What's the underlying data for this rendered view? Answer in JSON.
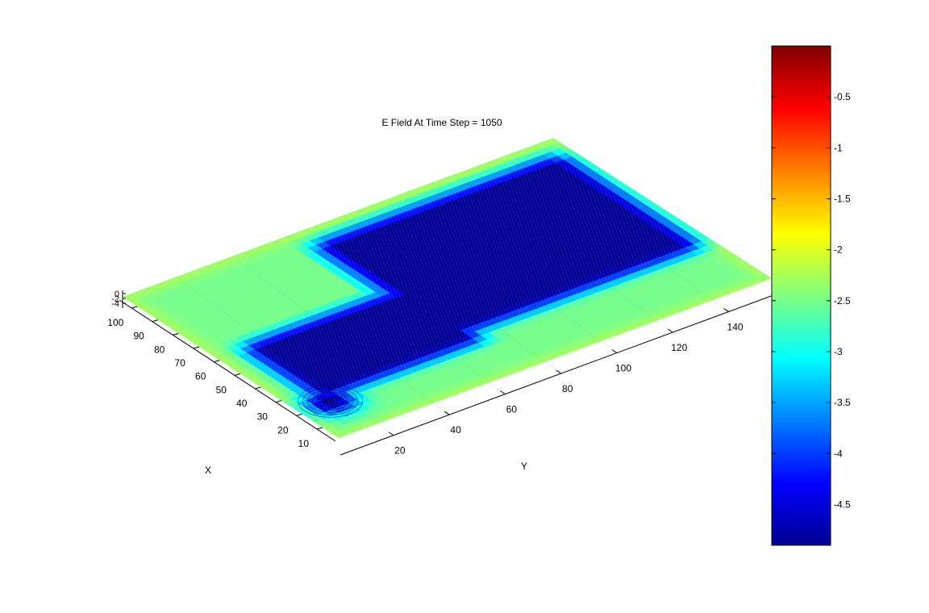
{
  "chart_data": {
    "type": "surface",
    "title": "E Field At Time Step = 1050",
    "xlabel": "X",
    "ylabel": "Y",
    "zlabel": "",
    "x_ticks": [
      10,
      20,
      30,
      40,
      50,
      60,
      70,
      80,
      90,
      100
    ],
    "y_ticks": [
      20,
      40,
      60,
      80,
      100,
      120,
      140
    ],
    "z_ticks": [
      "0",
      "-2",
      "-4"
    ],
    "xlim": [
      1,
      106
    ],
    "ylim": [
      1,
      156
    ],
    "zlim": [
      -4.9,
      0
    ],
    "colormap": "jet",
    "colorbar": {
      "range": [
        -4.9,
        0
      ],
      "ticks": [
        "-0.5",
        "-1",
        "-1.5",
        "-2",
        "-2.5",
        "-3",
        "-3.5",
        "-4",
        "-4.5"
      ],
      "tick_values": [
        -0.5,
        -1,
        -1.5,
        -2,
        -2.5,
        -3,
        -3.5,
        -4,
        -4.5
      ]
    },
    "surface_description": {
      "background_level": -2.5,
      "regions": [
        {
          "name": "large rectangle",
          "x_range": [
            28,
            98
          ],
          "y_range": [
            62,
            152
          ],
          "z": -4.8
        },
        {
          "name": "channel",
          "x_range": [
            22,
            62
          ],
          "y_range": [
            10,
            70
          ],
          "z": -4.8
        },
        {
          "name": "dip",
          "x_center": 20,
          "y_center": 12,
          "z_min": -4.9
        }
      ]
    }
  }
}
